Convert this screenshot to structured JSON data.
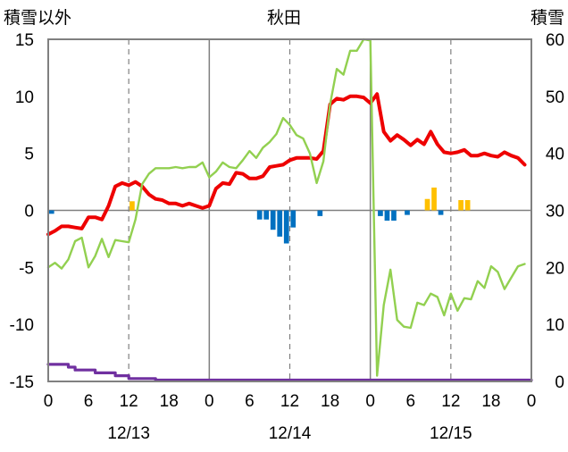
{
  "chart_data": {
    "type": "line",
    "title": "秋田",
    "left_axis_label": "積雪以外",
    "right_axis_label": "積雪",
    "left_ylim": [
      -15,
      15
    ],
    "left_yticks": [
      15,
      10,
      5,
      0,
      -5,
      -10,
      -15
    ],
    "right_ylim": [
      0,
      60
    ],
    "right_yticks": [
      60,
      50,
      40,
      30,
      20,
      10,
      0
    ],
    "xlim": [
      0,
      72
    ],
    "x_unit": "hours from 12/13 00:00",
    "x_tick_labels": [
      "0",
      "6",
      "12",
      "18",
      "0",
      "6",
      "12",
      "18",
      "0",
      "6",
      "12",
      "18",
      "0"
    ],
    "day_labels": [
      {
        "label": "12/13",
        "x": 12
      },
      {
        "label": "12/14",
        "x": 36
      },
      {
        "label": "12/15",
        "x": 60
      }
    ],
    "grid": "dashed vertical lines at 12h, solid at day boundaries; horizontal zero line",
    "colors": {
      "red": "#ee0000",
      "green": "#92d050",
      "purple": "#7030a0",
      "blue": "#0070c0",
      "orange": "#ffc000",
      "axis": "#808080"
    },
    "series": [
      {
        "key": "red",
        "axis": "left",
        "x": [
          0,
          1,
          2,
          3,
          4,
          5,
          6,
          7,
          8,
          9,
          10,
          11,
          12,
          13,
          14,
          15,
          16,
          17,
          18,
          19,
          20,
          21,
          22,
          23,
          24,
          25,
          26,
          27,
          28,
          29,
          30,
          31,
          32,
          33,
          34,
          35,
          36,
          37,
          38,
          39,
          40,
          41,
          42,
          43,
          44,
          45,
          46,
          47,
          48,
          49,
          50,
          51,
          52,
          53,
          54,
          55,
          56,
          57,
          58,
          59,
          60,
          61,
          62,
          63,
          64,
          65,
          66,
          67,
          68,
          69,
          70,
          71
        ],
        "values": [
          -2.1,
          -1.8,
          -1.4,
          -1.4,
          -1.5,
          -1.6,
          -0.6,
          -0.6,
          -0.8,
          0.4,
          2.1,
          2.4,
          2.2,
          2.5,
          2.1,
          1.4,
          1.0,
          0.9,
          0.6,
          0.6,
          0.4,
          0.6,
          0.4,
          0.2,
          0.4,
          1.9,
          2.4,
          2.3,
          3.3,
          3.2,
          2.8,
          2.8,
          3.0,
          3.8,
          3.9,
          4.0,
          4.4,
          4.6,
          4.6,
          4.6,
          4.5,
          5.2,
          9.3,
          9.8,
          9.7,
          10.0,
          10.0,
          9.9,
          9.4,
          10.2,
          6.9,
          6.1,
          6.6,
          6.2,
          5.7,
          6.2,
          5.8,
          6.9,
          5.8,
          5.1,
          5.0,
          5.1,
          5.3,
          4.8,
          4.8,
          5.0,
          4.8,
          4.7,
          5.1,
          4.8,
          4.6,
          4.0
        ]
      },
      {
        "key": "green",
        "axis": "left",
        "x": [
          0,
          1,
          2,
          3,
          4,
          5,
          6,
          7,
          8,
          9,
          10,
          11,
          12,
          13,
          14,
          15,
          16,
          17,
          18,
          19,
          20,
          21,
          22,
          23,
          24,
          25,
          26,
          27,
          28,
          29,
          30,
          31,
          32,
          33,
          34,
          35,
          36,
          37,
          38,
          39,
          40,
          41,
          42,
          43,
          44,
          45,
          46,
          47,
          48,
          49,
          50,
          51,
          52,
          53,
          54,
          55,
          56,
          57,
          58,
          59,
          60,
          61,
          62,
          63,
          64,
          65,
          66,
          67,
          68,
          69,
          70,
          71
        ],
        "values": [
          -5.0,
          -4.6,
          -5.1,
          -4.3,
          -2.7,
          -2.4,
          -5.0,
          -4.0,
          -2.5,
          -4.1,
          -2.6,
          -2.7,
          -2.8,
          -0.8,
          2.3,
          3.2,
          3.7,
          3.7,
          3.7,
          3.8,
          3.7,
          3.8,
          3.8,
          4.2,
          2.9,
          3.4,
          4.2,
          3.8,
          3.7,
          4.4,
          5.2,
          4.6,
          5.5,
          6.0,
          6.7,
          8.1,
          7.5,
          6.6,
          6.3,
          5.0,
          2.4,
          4.3,
          9.3,
          12.4,
          11.9,
          14.0,
          14.0,
          15.0,
          14.9,
          -14.5,
          -8.3,
          -5.2,
          -9.6,
          -10.2,
          -10.3,
          -8.1,
          -8.3,
          -7.3,
          -7.6,
          -9.2,
          -7.3,
          -8.8,
          -7.7,
          -7.8,
          -6.2,
          -6.8,
          -4.9,
          -5.4,
          -6.9,
          -5.9,
          -4.9,
          -4.7
        ]
      },
      {
        "key": "purple",
        "axis": "right",
        "x": [
          0,
          3,
          3,
          4,
          4,
          7,
          7,
          10,
          10,
          12,
          12,
          16,
          16,
          24,
          24,
          30,
          30,
          36,
          36,
          42,
          42,
          48,
          48,
          60,
          60,
          72
        ],
        "values": [
          3,
          3,
          2.5,
          2.5,
          2,
          2,
          1.5,
          1.5,
          1,
          1,
          0.5,
          0.5,
          0,
          0,
          0,
          0,
          -1,
          -1,
          -1,
          -1,
          -1,
          -1,
          -1,
          -1,
          -1,
          -1
        ]
      }
    ],
    "bars": {
      "axis": "left",
      "hours": [
        0,
        12,
        31,
        32,
        33,
        34,
        35,
        36,
        40,
        49,
        50,
        51,
        53,
        58,
        61,
        62
      ],
      "values": [
        -0.3,
        0.8,
        -0.8,
        -0.8,
        -1.7,
        -2.3,
        -2.9,
        -1.5,
        -0.5,
        -0.5,
        -0.9,
        -0.9,
        -0.4,
        -0.4,
        0.9,
        0.9
      ],
      "colors": [
        "#0070c0",
        "#ffc000",
        "#0070c0",
        "#0070c0",
        "#0070c0",
        "#0070c0",
        "#0070c0",
        "#0070c0",
        "#0070c0",
        "#0070c0",
        "#0070c0",
        "#0070c0",
        "#0070c0",
        "#0070c0",
        "#ffc000",
        "#ffc000"
      ]
    },
    "bars_extra": {
      "hours": [
        56,
        57
      ],
      "values": [
        1.0,
        2.0
      ],
      "colors": [
        "#ffc000",
        "#ffc000"
      ]
    }
  }
}
